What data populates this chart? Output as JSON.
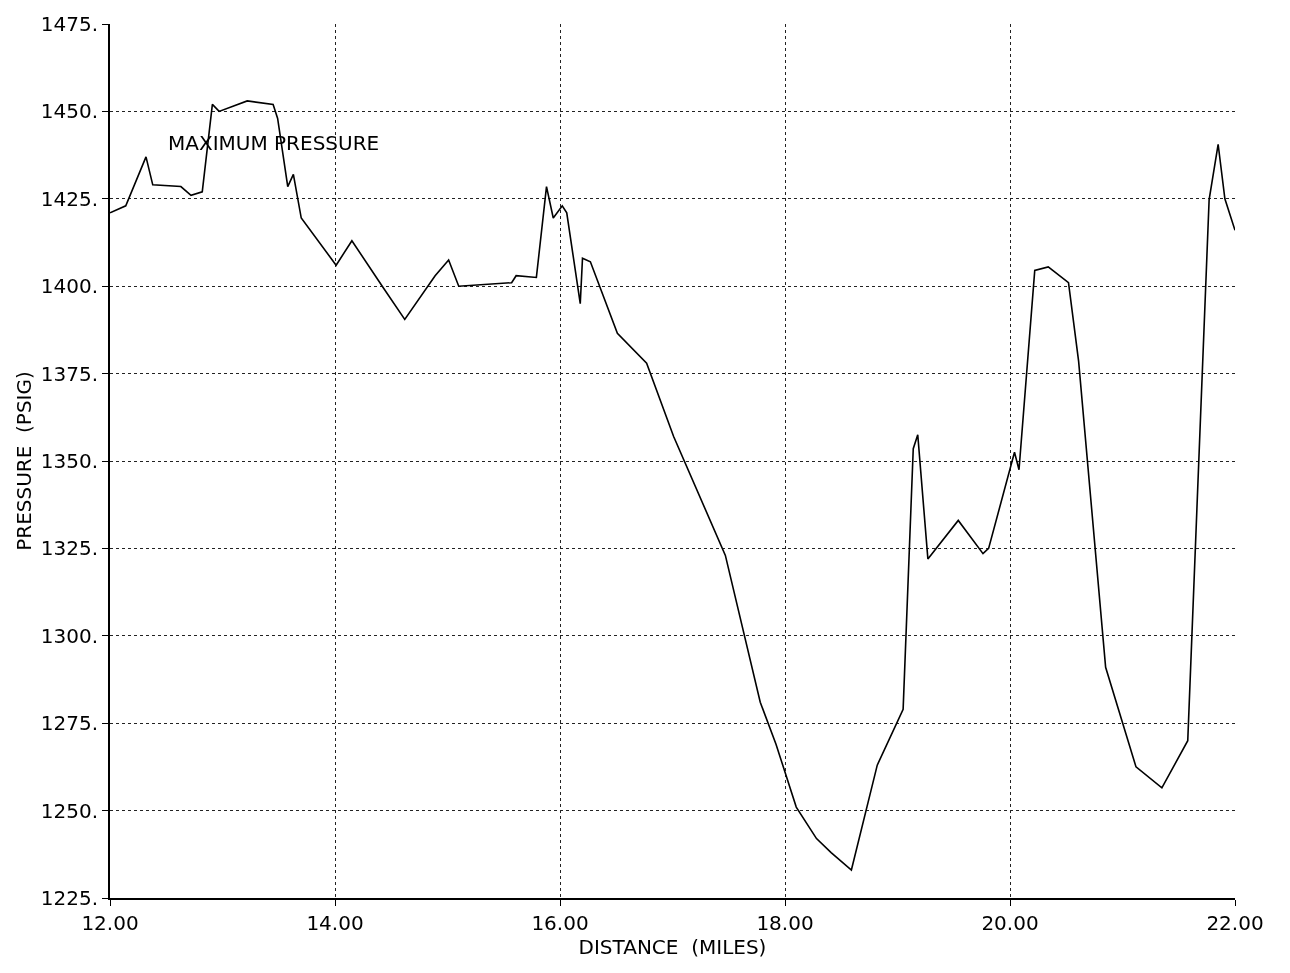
{
  "chart_data": {
    "type": "line",
    "xlabel": "DISTANCE  (MILES)",
    "ylabel": "PRESSURE  (PSIG)",
    "annotations": [
      "MAXIMUM PRESSURE"
    ],
    "x": [
      12.0,
      12.14,
      12.32,
      12.38,
      12.63,
      12.72,
      12.82,
      12.91,
      12.97,
      13.22,
      13.45,
      13.49,
      13.58,
      13.63,
      13.7,
      14.01,
      14.15,
      14.42,
      14.62,
      14.89,
      15.01,
      15.1,
      15.57,
      15.61,
      15.79,
      15.88,
      15.94,
      16.02,
      16.06,
      16.18,
      16.2,
      16.27,
      16.51,
      16.77,
      17.01,
      17.47,
      17.78,
      17.92,
      18.1,
      18.28,
      18.41,
      18.59,
      18.82,
      19.05,
      19.14,
      19.18,
      19.27,
      19.54,
      19.76,
      19.81,
      20.04,
      20.08,
      20.22,
      20.34,
      20.52,
      20.61,
      20.85,
      21.12,
      21.35,
      21.58,
      21.77,
      21.85,
      21.91,
      22.0
    ],
    "series": [
      {
        "color": "#000000",
        "values": [
          1421,
          1423,
          1437,
          1429,
          1428.5,
          1426,
          1427,
          1452,
          1450,
          1453,
          1452,
          1448,
          1428.5,
          1432,
          1419.5,
          1406,
          1413,
          1400,
          1390.5,
          1403,
          1407.5,
          1400,
          1401,
          1403,
          1402.5,
          1428.5,
          1419.5,
          1423,
          1421,
          1395,
          1408,
          1407,
          1386.5,
          1378,
          1357,
          1323,
          1281,
          1269,
          1251,
          1242,
          1238,
          1233,
          1263,
          1279,
          1353.5,
          1357.5,
          1322,
          1333,
          1323.5,
          1325,
          1352.5,
          1347.5,
          1404.5,
          1405.5,
          1401,
          1378.5,
          1291,
          1262.5,
          1256.5,
          1270,
          1424.8,
          1440.6,
          1425,
          1416
        ]
      }
    ],
    "xlim": [
      12,
      22
    ],
    "ylim": [
      1225,
      1475
    ],
    "xticks": [
      {
        "value": 12,
        "label": "12.00"
      },
      {
        "value": 14,
        "label": "14.00"
      },
      {
        "value": 16,
        "label": "16.00"
      },
      {
        "value": 18,
        "label": "18.00"
      },
      {
        "value": 20,
        "label": "20.00"
      },
      {
        "value": 22,
        "label": "22.00"
      }
    ],
    "yticks": [
      {
        "value": 1225,
        "label": "1225."
      },
      {
        "value": 1250,
        "label": "1250."
      },
      {
        "value": 1275,
        "label": "1275."
      },
      {
        "value": 1300,
        "label": "1300."
      },
      {
        "value": 1325,
        "label": "1325."
      },
      {
        "value": 1350,
        "label": "1350."
      },
      {
        "value": 1375,
        "label": "1375."
      },
      {
        "value": 1400,
        "label": "1400."
      },
      {
        "value": 1425,
        "label": "1425."
      },
      {
        "value": 1450,
        "label": "1450."
      },
      {
        "value": 1475,
        "label": "1475."
      }
    ],
    "grid": true,
    "marker": "none",
    "line_style": "solid"
  }
}
